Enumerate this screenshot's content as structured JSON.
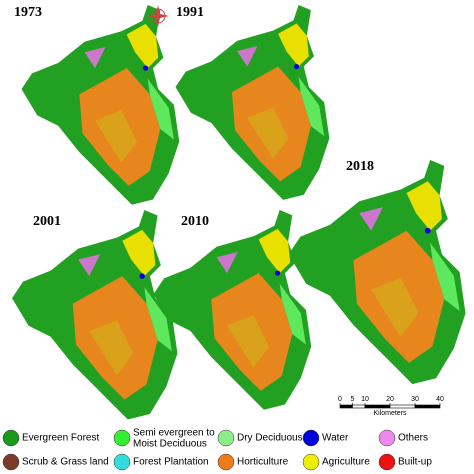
{
  "panels": [
    {
      "label": "1973"
    },
    {
      "label": "1991"
    },
    {
      "label": "2018"
    },
    {
      "label": "2001"
    },
    {
      "label": "2010"
    }
  ],
  "scale_bar": {
    "ticks": [
      0,
      5,
      10,
      20,
      30,
      40
    ],
    "unit": "Kilometers"
  },
  "legend": [
    {
      "label": "Evergreen Forest",
      "color": "#1a9a1a"
    },
    {
      "label": [
        "Semi evergreen to",
        "Moist Deciduous"
      ],
      "color": "#33ee33"
    },
    {
      "label": "Dry Deciduous",
      "color": "#8ced8c"
    },
    {
      "label": "Water",
      "color": "#0000dd"
    },
    {
      "label": "Others",
      "color": "#ee88ee"
    },
    {
      "label": "Scrub & Grass land",
      "color": "#7a3a2a"
    },
    {
      "label": "Forest Plantation",
      "color": "#33dddd"
    },
    {
      "label": "Horticulture",
      "color": "#ee7a1a"
    },
    {
      "label": "Agriculture",
      "color": "#eeee00"
    },
    {
      "label": "Built-up",
      "color": "#ee1111"
    }
  ]
}
